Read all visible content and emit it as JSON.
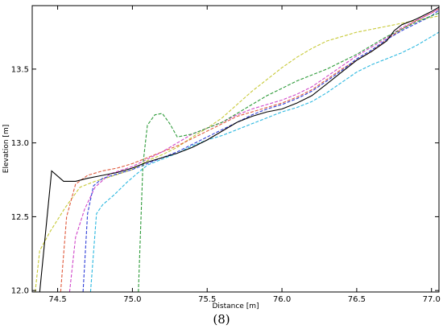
{
  "chart_data": {
    "type": "line",
    "title": "",
    "xlabel": "Distance [m]",
    "ylabel": "Elevation [m]",
    "caption": "(8)",
    "xlim": [
      74.33,
      77.05
    ],
    "ylim": [
      11.99,
      13.93
    ],
    "xticks": [
      74.5,
      75.0,
      75.5,
      76.0,
      76.5,
      77.0
    ],
    "yticks": [
      12.0,
      12.5,
      13.0,
      13.5
    ],
    "xtick_labels": [
      "74.5",
      "75.0",
      "75.5",
      "76.0",
      "76.5",
      "77.0"
    ],
    "ytick_labels": [
      "12.0",
      "12.5",
      "13.0",
      "13.5"
    ],
    "grid": false,
    "series": [
      {
        "color": "#000000",
        "dash": "solid",
        "x": [
          74.38,
          74.46,
          74.54,
          74.62,
          74.7,
          74.8,
          74.9,
          75.0,
          75.1,
          75.2,
          75.3,
          75.4,
          75.5,
          75.6,
          75.7,
          75.8,
          75.9,
          76.0,
          76.1,
          76.2,
          76.3,
          76.4,
          76.5,
          76.6,
          76.7,
          76.75,
          76.8,
          76.9,
          77.0,
          77.05
        ],
        "y": [
          11.99,
          12.81,
          12.74,
          12.74,
          12.76,
          12.78,
          12.8,
          12.83,
          12.87,
          12.9,
          12.93,
          12.97,
          13.02,
          13.08,
          13.14,
          13.18,
          13.21,
          13.23,
          13.27,
          13.32,
          13.4,
          13.48,
          13.56,
          13.62,
          13.69,
          13.76,
          13.8,
          13.84,
          13.89,
          13.92
        ]
      },
      {
        "color": "#c7c936",
        "dash": "dashed",
        "x": [
          74.35,
          74.38,
          74.45,
          74.55,
          74.65,
          74.75,
          74.85,
          75.0,
          75.1,
          75.2,
          75.3,
          75.4,
          75.5,
          75.6,
          75.7,
          75.8,
          75.9,
          76.0,
          76.1,
          76.2,
          76.3,
          76.4,
          76.5,
          76.6,
          76.7,
          76.8,
          76.9,
          77.0,
          77.05
        ],
        "y": [
          11.99,
          12.27,
          12.4,
          12.56,
          12.7,
          12.74,
          12.77,
          12.82,
          12.88,
          12.92,
          12.97,
          13.04,
          13.1,
          13.17,
          13.26,
          13.35,
          13.43,
          13.51,
          13.58,
          13.64,
          13.69,
          13.72,
          13.75,
          13.77,
          13.79,
          13.81,
          13.83,
          13.85,
          13.86
        ]
      },
      {
        "color": "#e05a3c",
        "dash": "dashed",
        "x": [
          74.52,
          74.56,
          74.62,
          74.7,
          74.8,
          74.9,
          75.0,
          75.1,
          75.2,
          75.3,
          75.4,
          75.5,
          75.6,
          75.7,
          75.8,
          75.9,
          76.0,
          76.1,
          76.2,
          76.3,
          76.4,
          76.5,
          76.6,
          76.7,
          76.8,
          76.9,
          77.0,
          77.05
        ],
        "y": [
          11.99,
          12.5,
          12.72,
          12.78,
          12.81,
          12.83,
          12.86,
          12.9,
          12.94,
          12.98,
          13.03,
          13.08,
          13.13,
          13.18,
          13.21,
          13.24,
          13.27,
          13.31,
          13.36,
          13.43,
          13.5,
          13.56,
          13.62,
          13.7,
          13.77,
          13.83,
          13.88,
          13.91
        ]
      },
      {
        "color": "#d046c9",
        "dash": "dashed",
        "x": [
          74.58,
          74.62,
          74.68,
          74.75,
          74.85,
          75.0,
          75.1,
          75.2,
          75.3,
          75.4,
          75.5,
          75.6,
          75.7,
          75.8,
          75.9,
          76.0,
          76.1,
          76.2,
          76.3,
          76.4,
          76.5,
          76.6,
          76.7,
          76.8,
          76.9,
          77.0,
          77.05
        ],
        "y": [
          11.99,
          12.36,
          12.55,
          12.7,
          12.79,
          12.84,
          12.89,
          12.94,
          13.0,
          13.06,
          13.1,
          13.14,
          13.19,
          13.23,
          13.26,
          13.29,
          13.33,
          13.38,
          13.45,
          13.52,
          13.59,
          13.65,
          13.71,
          13.78,
          13.83,
          13.88,
          13.91
        ]
      },
      {
        "color": "#2f3fd8",
        "dash": "dashed",
        "x": [
          74.67,
          74.7,
          74.74,
          74.8,
          74.9,
          75.0,
          75.1,
          75.2,
          75.3,
          75.4,
          75.5,
          75.6,
          75.7,
          75.8,
          75.9,
          76.0,
          76.1,
          76.2,
          76.3,
          76.4,
          76.5,
          76.6,
          76.7,
          76.8,
          76.9,
          77.0,
          77.05
        ],
        "y": [
          11.99,
          12.52,
          12.71,
          12.76,
          12.79,
          12.82,
          12.86,
          12.9,
          12.94,
          12.99,
          13.04,
          13.09,
          13.14,
          13.19,
          13.23,
          13.26,
          13.3,
          13.35,
          13.42,
          13.49,
          13.57,
          13.63,
          13.7,
          13.76,
          13.81,
          13.86,
          13.9
        ]
      },
      {
        "color": "#2bb8e0",
        "dash": "dashed",
        "x": [
          74.72,
          74.76,
          74.8,
          74.88,
          74.96,
          75.04,
          75.1,
          75.2,
          75.3,
          75.4,
          75.5,
          75.6,
          75.7,
          75.8,
          75.9,
          76.0,
          76.1,
          76.2,
          76.3,
          76.4,
          76.5,
          76.6,
          76.7,
          76.8,
          76.9,
          77.0,
          77.05
        ],
        "y": [
          11.99,
          12.52,
          12.58,
          12.65,
          12.73,
          12.8,
          12.85,
          12.89,
          12.93,
          12.98,
          13.02,
          13.05,
          13.09,
          13.13,
          13.17,
          13.21,
          13.24,
          13.28,
          13.34,
          13.41,
          13.48,
          13.53,
          13.57,
          13.61,
          13.66,
          13.72,
          13.75
        ]
      },
      {
        "color": "#2e9b3a",
        "dash": "dashed",
        "x": [
          75.04,
          75.07,
          75.1,
          75.15,
          75.2,
          75.25,
          75.3,
          75.4,
          75.5,
          75.6,
          75.7,
          75.8,
          75.9,
          76.0,
          76.1,
          76.2,
          76.3,
          76.4,
          76.5,
          76.6,
          76.7,
          76.8,
          76.9,
          77.0,
          77.05
        ],
        "y": [
          11.99,
          12.85,
          13.12,
          13.19,
          13.2,
          13.13,
          13.04,
          13.06,
          13.1,
          13.14,
          13.2,
          13.26,
          13.32,
          13.37,
          13.42,
          13.46,
          13.5,
          13.55,
          13.6,
          13.66,
          13.72,
          13.77,
          13.82,
          13.86,
          13.88
        ]
      }
    ]
  }
}
